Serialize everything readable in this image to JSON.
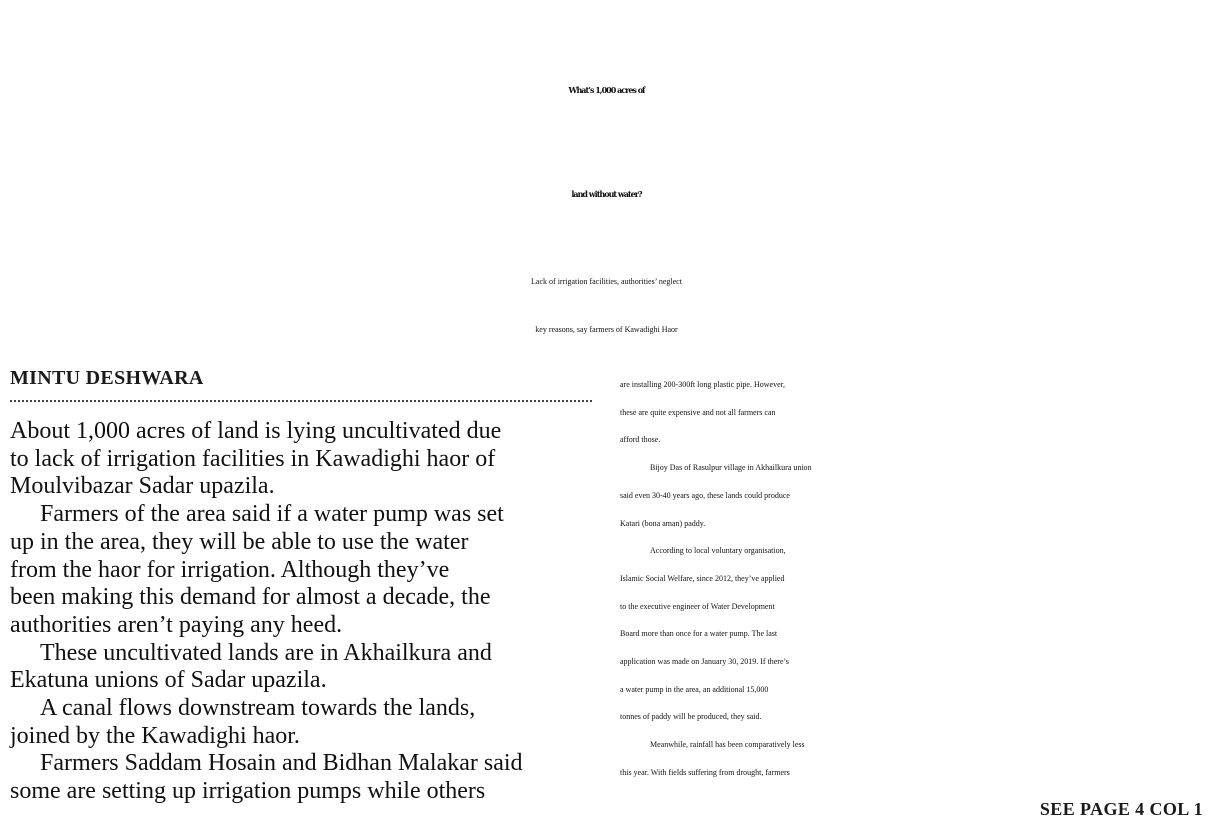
{
  "article": {
    "headline": {
      "line1": "What’s 1,000 acres of",
      "line2": "land without water?"
    },
    "subhead": {
      "line1": "Lack of irrigation facilities, authorities’ neglect",
      "line2": "key reasons, say farmers of Kawadighi Haor"
    },
    "byline": "MINTU DESHWARA",
    "left_column": [
      "About 1,000 acres of land is lying uncultivated due",
      "to lack of irrigation facilities in Kawadighi haor of",
      "Moulvibazar Sadar upazila.",
      "Farmers of the area said if a water pump was set",
      "up in the area, they will be able to use the water",
      "from the haor for irrigation. Although they’ve",
      "been making this demand for almost a decade, the",
      "authorities aren’t paying any heed.",
      "These uncultivated lands are in Akhailkura and",
      "Ekatuna unions of Sadar upazila.",
      "A canal flows downstream towards the lands,",
      "joined by the Kawadighi haor.",
      "Farmers Saddam Hosain and Bidhan Malakar said",
      "some are setting up irrigation pumps while others"
    ],
    "right_column": [
      "are installing 200-300ft long plastic pipe. However,",
      "these are quite expensive and not all farmers can",
      "afford those.",
      "Bijoy Das of Rasulpur village in Akhailkura union",
      "said even 30-40 years ago, these lands could produce",
      "Katari (bona aman) paddy.",
      "According to local voluntary organisation,",
      "Islamic Social Welfare, since 2012, they’ve applied",
      "to the executive engineer of Water Development",
      "Board more than once for a water pump. The last",
      "application was made on January 30, 2019. If there’s",
      "a water pump in the area, an additional 15,000",
      "tonnes of paddy will be produced, they said.",
      "Meanwhile, rainfall has been comparatively less",
      "this year. With fields suffering from drought, farmers"
    ],
    "continuation": "SEE PAGE 4 COL 1"
  }
}
